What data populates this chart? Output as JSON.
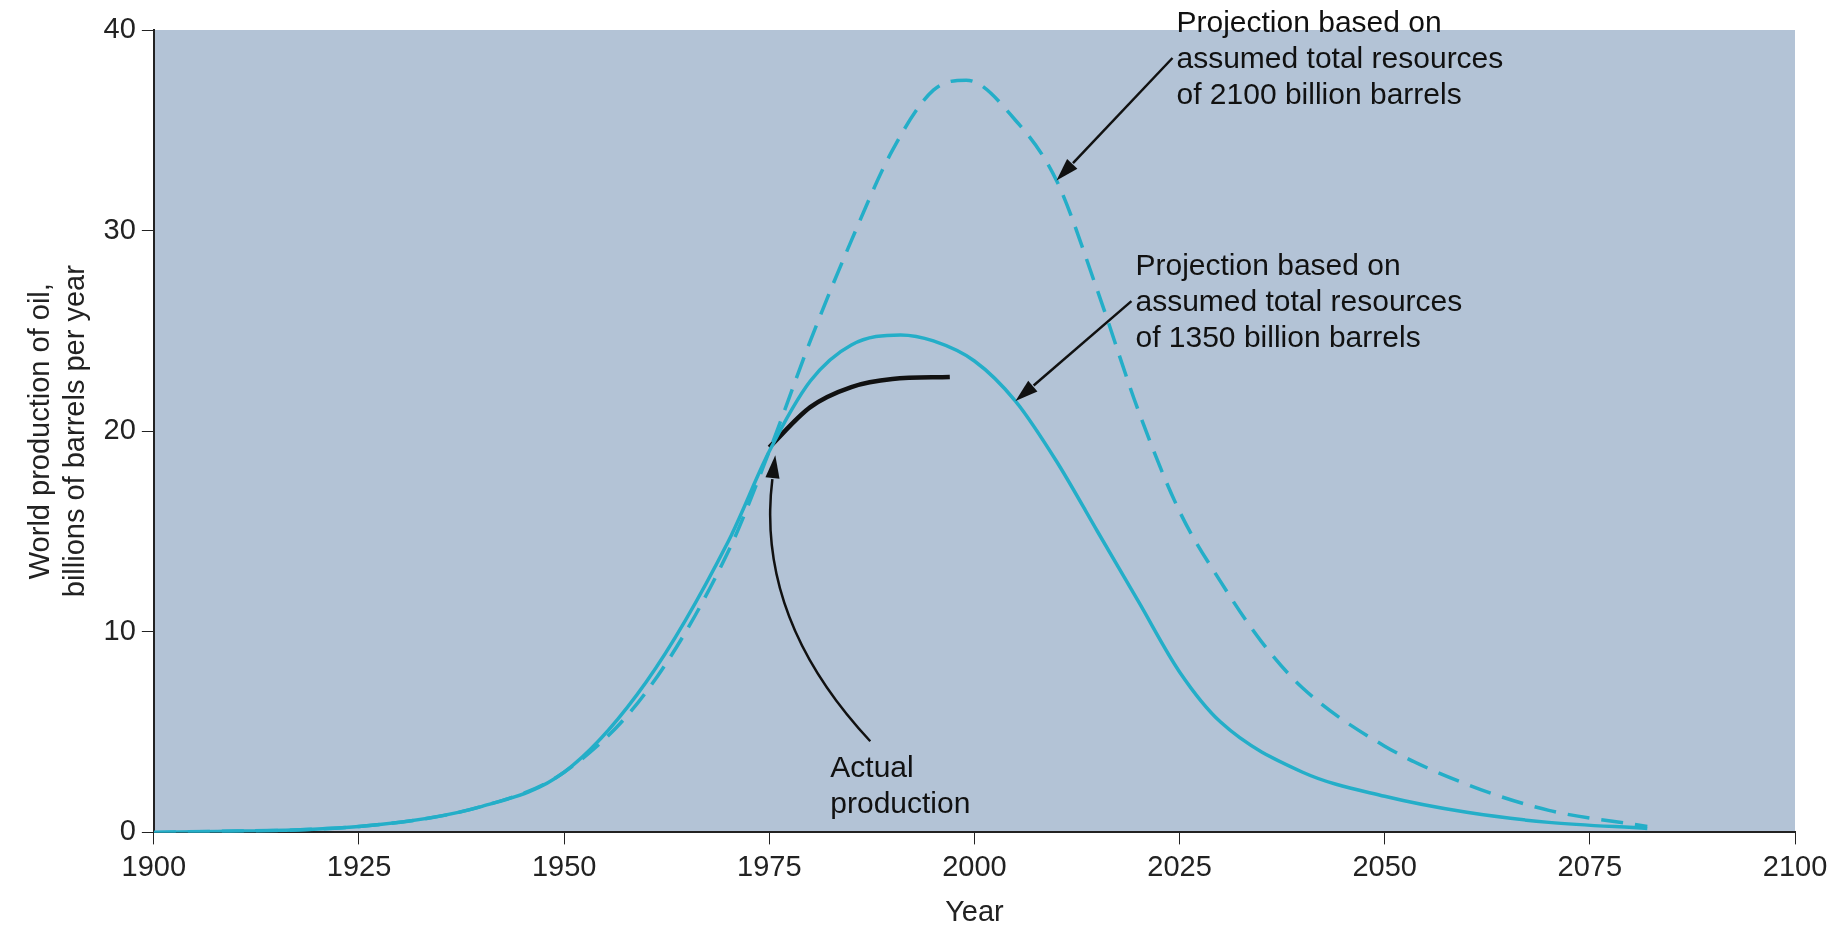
{
  "chart_data": {
    "type": "line",
    "xlabel": "Year",
    "ylabel": "World production of oil,\nbillions of barrels per year",
    "xlim": [
      1900,
      2100
    ],
    "xticks": [
      1900,
      1925,
      1950,
      1975,
      2000,
      2025,
      2050,
      2075,
      2100
    ],
    "ylim": [
      0,
      40
    ],
    "yticks": [
      0,
      10,
      20,
      30,
      40
    ],
    "grid": false,
    "legend": false,
    "marker": "none",
    "series": [
      {
        "color": "#24aec8",
        "line_style": "dashed",
        "x": [
          1900,
          1925,
          1940,
          1950,
          1960,
          1970,
          1975,
          1980,
          1985,
          1990,
          1995,
          1999,
          2005,
          2010,
          2015,
          2020,
          2025,
          2030,
          2035,
          2040,
          2050,
          2060,
          2070,
          2082
        ],
        "values": [
          0,
          0.3,
          1.3,
          3,
          7,
          14,
          19,
          24.5,
          29.5,
          34,
          37,
          37.5,
          35.5,
          32.5,
          27,
          21,
          16,
          12.5,
          9.5,
          7.2,
          4.3,
          2.4,
          1.1,
          0.3
        ]
      },
      {
        "color": "#24aec8",
        "line_style": "solid",
        "x": [
          1900,
          1925,
          1940,
          1950,
          1960,
          1970,
          1975,
          1980,
          1985,
          1991,
          1995,
          2000,
          2005,
          2010,
          2015,
          2020,
          2025,
          2030,
          2040,
          2050,
          2060,
          2070,
          2082
        ],
        "values": [
          0,
          0.3,
          1.3,
          3,
          7.5,
          14.5,
          19,
          22.5,
          24.3,
          24.8,
          24.5,
          23.5,
          21.5,
          18.5,
          15,
          11.5,
          8,
          5.5,
          3,
          1.8,
          1,
          0.5,
          0.2
        ]
      },
      {
        "color": "#111111",
        "line_style": "solid",
        "x": [
          1975,
          1980,
          1985,
          1990,
          1997
        ],
        "values": [
          19.2,
          21.2,
          22.2,
          22.6,
          22.7
        ]
      }
    ],
    "annotations": [
      "Projection based on\nassumed total resources\nof 2100 billion barrels",
      "Projection based on\nassumed total resources\nof 1350 billion barrels",
      "Actual\nproduction"
    ]
  }
}
